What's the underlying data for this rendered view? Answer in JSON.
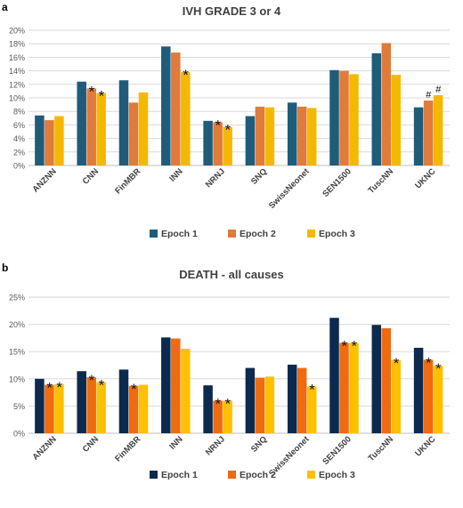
{
  "chart_data": [
    {
      "panel": "a",
      "type": "bar",
      "title": "IVH GRADE 3 or 4",
      "categories": [
        "ANZNN",
        "CNN",
        "FinMBR",
        "INN",
        "NRNJ",
        "SNQ",
        "SwissNeonet",
        "SEN1500",
        "TuscNN",
        "UKNC"
      ],
      "ylim": [
        0,
        20
      ],
      "yticks": [
        "0%",
        "2%",
        "4%",
        "6%",
        "8%",
        "10%",
        "12%",
        "14%",
        "16%",
        "18%",
        "20%"
      ],
      "grid": true,
      "legend": "bottom",
      "series": [
        {
          "name": "Epoch 1",
          "color": "#1f5c7a",
          "values": [
            7.4,
            12.4,
            12.6,
            17.6,
            6.6,
            7.3,
            9.3,
            14.1,
            16.6,
            8.6
          ]
        },
        {
          "name": "Epoch 2",
          "color": "#e07b39",
          "values": [
            6.7,
            11.4,
            9.3,
            16.7,
            6.4,
            8.7,
            8.7,
            14.0,
            18.1,
            9.6
          ]
        },
        {
          "name": "Epoch 3",
          "color": "#f5b800",
          "values": [
            7.3,
            10.7,
            10.8,
            13.8,
            5.7,
            8.6,
            8.5,
            13.5,
            13.4,
            10.4
          ]
        }
      ],
      "markers": [
        {
          "category": 1,
          "series": 1,
          "symbol": "*"
        },
        {
          "category": 1,
          "series": 2,
          "symbol": "*"
        },
        {
          "category": 3,
          "series": 2,
          "symbol": "*"
        },
        {
          "category": 4,
          "series": 1,
          "symbol": "*"
        },
        {
          "category": 4,
          "series": 2,
          "symbol": "*"
        },
        {
          "category": 9,
          "series": 1,
          "symbol": "#"
        },
        {
          "category": 9,
          "series": 2,
          "symbol": "#"
        }
      ]
    },
    {
      "panel": "b",
      "type": "bar",
      "title": "DEATH - all causes",
      "categories": [
        "ANZNN",
        "CNN",
        "FinMBR",
        "INN",
        "NRNJ",
        "SNQ",
        "SwissNeonet",
        "SEN1500",
        "TuscNN",
        "UKNC"
      ],
      "ylim": [
        0,
        25
      ],
      "yticks": [
        "0%",
        "5%",
        "10%",
        "15%",
        "20%",
        "25%"
      ],
      "grid": true,
      "legend": "bottom",
      "series": [
        {
          "name": "Epoch 1",
          "color": "#0c2a4e",
          "values": [
            10.0,
            11.4,
            11.7,
            17.6,
            8.8,
            12.0,
            12.6,
            21.2,
            19.9,
            15.7
          ]
        },
        {
          "name": "Epoch 2",
          "color": "#f06a0f",
          "values": [
            8.9,
            10.3,
            8.7,
            17.4,
            6.0,
            10.2,
            12.0,
            16.6,
            19.3,
            13.5
          ]
        },
        {
          "name": "Epoch 3",
          "color": "#ffc000",
          "values": [
            9.0,
            9.4,
            8.9,
            15.5,
            6.0,
            10.4,
            8.6,
            16.6,
            13.4,
            12.4
          ]
        }
      ],
      "markers": [
        {
          "category": 0,
          "series": 1,
          "symbol": "*"
        },
        {
          "category": 0,
          "series": 2,
          "symbol": "*"
        },
        {
          "category": 1,
          "series": 1,
          "symbol": "*"
        },
        {
          "category": 1,
          "series": 2,
          "symbol": "*"
        },
        {
          "category": 2,
          "series": 1,
          "symbol": "*"
        },
        {
          "category": 4,
          "series": 1,
          "symbol": "*"
        },
        {
          "category": 4,
          "series": 2,
          "symbol": "*"
        },
        {
          "category": 6,
          "series": 2,
          "symbol": "*"
        },
        {
          "category": 7,
          "series": 1,
          "symbol": "*"
        },
        {
          "category": 7,
          "series": 2,
          "symbol": "*"
        },
        {
          "category": 8,
          "series": 2,
          "symbol": "*"
        },
        {
          "category": 9,
          "series": 1,
          "symbol": "*"
        },
        {
          "category": 9,
          "series": 2,
          "symbol": "*"
        }
      ]
    }
  ]
}
